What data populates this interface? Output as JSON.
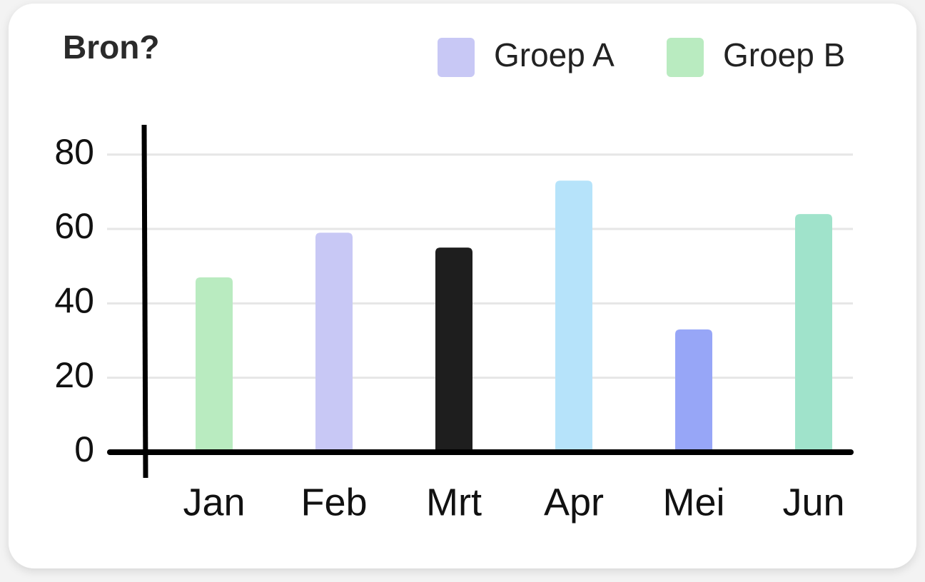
{
  "chart_data": {
    "type": "bar",
    "title": "Bron?",
    "categories": [
      "Jan",
      "Feb",
      "Mrt",
      "Apr",
      "Mei",
      "Jun"
    ],
    "values": [
      47,
      59,
      55,
      73,
      33,
      64
    ],
    "colors": [
      "#b9ebc0",
      "#c8c8f5",
      "#1e1e1e",
      "#b6e3fa",
      "#97a6f7",
      "#a0e3cb"
    ],
    "legend": [
      {
        "name": "Groep A",
        "color": "#c8c8f5"
      },
      {
        "name": "Groep B",
        "color": "#b9ebc0"
      }
    ],
    "ylim": [
      0,
      88
    ],
    "yticks": [
      0,
      20,
      40,
      60,
      80
    ],
    "grid": true
  }
}
